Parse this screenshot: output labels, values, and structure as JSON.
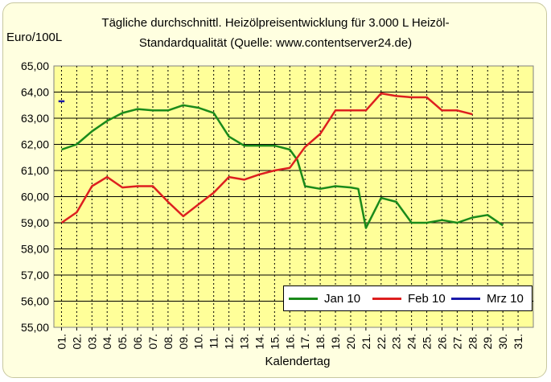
{
  "chart_data": {
    "type": "line",
    "title": "Tägliche durchschnittl. Heizölpreisentwicklung für 3.000 L Heizöl-",
    "subtitle": "Standardqualität (Quelle: www.contentserver24.de)",
    "ylabel": "Euro/100L",
    "xlabel": "Kalendertag",
    "ylim": [
      55,
      65
    ],
    "y_ticks": [
      "55,00",
      "56,00",
      "57,00",
      "58,00",
      "59,00",
      "60,00",
      "61,00",
      "62,00",
      "63,00",
      "64,00",
      "65,00"
    ],
    "categories": [
      "01.",
      "02.",
      "03.",
      "04.",
      "05.",
      "06.",
      "07.",
      "08.",
      "09.",
      "10.",
      "11.",
      "12.",
      "13.",
      "14.",
      "15.",
      "16.",
      "17.",
      "18.",
      "19.",
      "20.",
      "21.",
      "22.",
      "23.",
      "24.",
      "25.",
      "26.",
      "27.",
      "28.",
      "29.",
      "30.",
      "31."
    ],
    "grid": true,
    "legend_position": "bottom-right",
    "series": [
      {
        "name": "Jan 10",
        "color": "#1a8a1a",
        "x": [
          1,
          2,
          3,
          4,
          5,
          6,
          7,
          8,
          9,
          10,
          11,
          12,
          13,
          14,
          15,
          16,
          16.5,
          17,
          18,
          19,
          20,
          20.5,
          21,
          22,
          23,
          24,
          25,
          26,
          27,
          28,
          29,
          30
        ],
        "values": [
          61.8,
          62.0,
          62.5,
          62.9,
          63.2,
          63.35,
          63.3,
          63.3,
          63.5,
          63.4,
          63.2,
          62.3,
          61.95,
          61.95,
          61.95,
          61.8,
          61.4,
          60.4,
          60.3,
          60.4,
          60.35,
          60.3,
          58.8,
          59.95,
          59.8,
          59.0,
          59.0,
          59.1,
          59.0,
          59.2,
          59.3,
          58.9
        ]
      },
      {
        "name": "Feb 10",
        "color": "#dd1f1f",
        "x": [
          1,
          2,
          3,
          4,
          5,
          6,
          7,
          8,
          9,
          10,
          11,
          12,
          13,
          14,
          15,
          16,
          17,
          18,
          19,
          20,
          21,
          22,
          23,
          24,
          25,
          26,
          27,
          28
        ],
        "values": [
          59.0,
          59.4,
          60.4,
          60.75,
          60.35,
          60.4,
          60.4,
          59.8,
          59.25,
          59.7,
          60.15,
          60.75,
          60.65,
          60.85,
          61.0,
          61.1,
          61.9,
          62.4,
          63.3,
          63.3,
          63.3,
          63.95,
          63.85,
          63.8,
          63.8,
          63.3,
          63.3,
          63.15
        ]
      },
      {
        "name": "Mrz 10",
        "color": "#1a1aaa",
        "x": [
          0.8,
          1.2
        ],
        "values": [
          63.65,
          63.65
        ]
      }
    ]
  }
}
